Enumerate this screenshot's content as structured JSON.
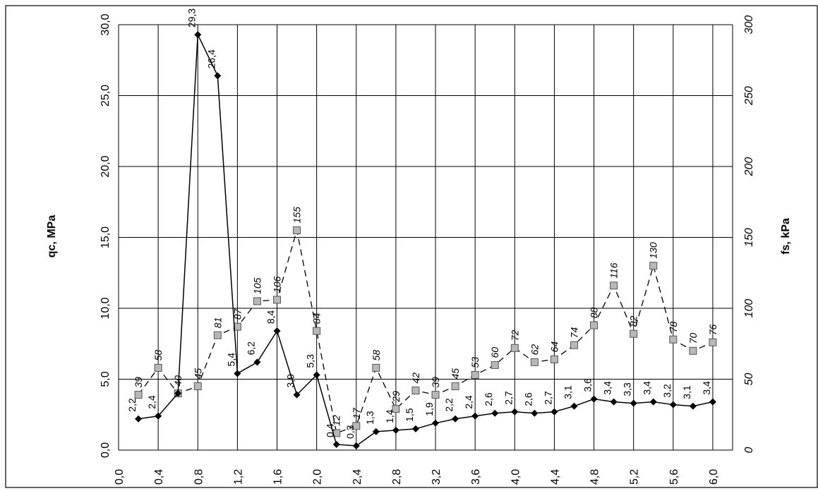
{
  "chart_data": {
    "type": "line",
    "orientation": "rotated-90-ccw",
    "x": [
      0.2,
      0.4,
      0.6,
      0.8,
      1.0,
      1.2,
      1.4,
      1.6,
      1.8,
      2.0,
      2.2,
      2.4,
      2.6,
      2.8,
      3.0,
      3.2,
      3.4,
      3.6,
      3.8,
      4.0,
      4.2,
      4.4,
      4.6,
      4.8,
      5.0,
      5.2,
      5.4,
      5.6,
      5.8,
      6.0
    ],
    "x_tick_labels": [
      "0,0",
      "0,4",
      "0,8",
      "1,2",
      "1,6",
      "2,0",
      "2,4",
      "2,8",
      "3,2",
      "3,6",
      "4,0",
      "4,4",
      "4,8",
      "5,2",
      "5,6",
      "6,0"
    ],
    "xlim": [
      0,
      6.2
    ],
    "ylabel_left": "qc, MPa",
    "ylabel_right": "fs, kPa",
    "ylim_left": [
      0,
      30
    ],
    "ylim_right": [
      0,
      300
    ],
    "left_tick_labels": [
      "0,0",
      "5,0",
      "10,0",
      "15,0",
      "20,0",
      "25,0",
      "30,0"
    ],
    "right_tick_labels": [
      "0",
      "50",
      "100",
      "150",
      "200",
      "250",
      "300"
    ],
    "grid": true,
    "series": [
      {
        "name": "qc, MPa",
        "axis": "left",
        "marker": "diamond",
        "line_style": "solid",
        "color": "#000000",
        "values": [
          2.2,
          2.4,
          4.0,
          29.3,
          26.4,
          5.4,
          6.2,
          8.4,
          3.9,
          5.3,
          0.4,
          0.3,
          1.3,
          1.4,
          1.5,
          1.9,
          2.2,
          2.4,
          2.6,
          2.7,
          2.6,
          2.7,
          3.1,
          3.6,
          3.4,
          3.3,
          3.4,
          3.2,
          3.1,
          3.4
        ],
        "labels": [
          "2,2",
          "2,4",
          "",
          "29,3",
          "26,4",
          "5,4",
          "6,2",
          "8,4",
          "3,9",
          "5,3",
          "0,4",
          "0,3",
          "1,3",
          "1,4",
          "1,5",
          "1,9",
          "2,2",
          "2,4",
          "2,6",
          "2,7",
          "2,6",
          "2,7",
          "3,1",
          "3,6",
          "3,4",
          "3,3",
          "3,4",
          "3,2",
          "3,1",
          "3,4"
        ]
      },
      {
        "name": "fs, kPa",
        "axis": "right",
        "marker": "square",
        "line_style": "dashed",
        "color": "#000000",
        "marker_fill": "#b8b8b8",
        "values": [
          39,
          58,
          40,
          45,
          81,
          87,
          105,
          106,
          155,
          84,
          12,
          17,
          58,
          29,
          42,
          39,
          45,
          53,
          60,
          72,
          62,
          64,
          74,
          88,
          116,
          82,
          130,
          78,
          70,
          76
        ],
        "labels": [
          "39",
          "58",
          "40",
          "45",
          "81",
          "87",
          "105",
          "106",
          "155",
          "84",
          "12",
          "17",
          "58",
          "29",
          "42",
          "39",
          "45",
          "53",
          "60",
          "72",
          "62",
          "64",
          "74",
          "88",
          "116",
          "82",
          "130",
          "78",
          "70",
          "76"
        ]
      }
    ]
  }
}
